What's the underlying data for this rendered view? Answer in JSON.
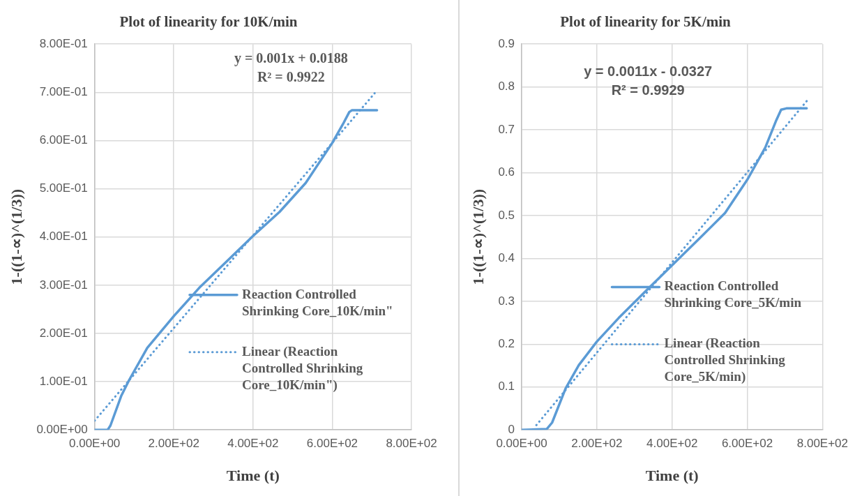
{
  "chart_data": [
    {
      "type": "line",
      "title": "Plot of linearity for 10K/min",
      "xlabel": "Time (t)",
      "ylabel": "1-((1-∝)^(1/3))",
      "xlim": [
        0,
        800
      ],
      "ylim": [
        0,
        0.8
      ],
      "xticks": [
        {
          "value": 0,
          "label": "0.00E+00"
        },
        {
          "value": 200,
          "label": "2.00E+02"
        },
        {
          "value": 400,
          "label": "4.00E+02"
        },
        {
          "value": 600,
          "label": "6.00E+02"
        },
        {
          "value": 800,
          "label": "8.00E+02"
        }
      ],
      "yticks": [
        {
          "value": 0,
          "label": "0.00E+00"
        },
        {
          "value": 0.1,
          "label": "1.00E-01"
        },
        {
          "value": 0.2,
          "label": "2.00E-01"
        },
        {
          "value": 0.3,
          "label": "3.00E-01"
        },
        {
          "value": 0.4,
          "label": "4.00E-01"
        },
        {
          "value": 0.5,
          "label": "5.00E-01"
        },
        {
          "value": 0.6,
          "label": "6.00E-01"
        },
        {
          "value": 0.7,
          "label": "7.00E-01"
        },
        {
          "value": 0.8,
          "label": "8.00E-01"
        }
      ],
      "grid": true,
      "legend": "bottom right",
      "marker": "none",
      "annotations": [
        "y = 0.001x + 0.0188",
        "R² = 0.9922"
      ],
      "series": [
        {
          "name": "Reaction Controlled Shrinking Core_10K/min\"",
          "color": "#5b9bd5",
          "line_style": "solid",
          "x": [
            0,
            33,
            40,
            67,
            87,
            133,
            200,
            267,
            333,
            400,
            467,
            533,
            600,
            627,
            643,
            650,
            713
          ],
          "values": [
            0,
            0,
            0.009,
            0.07,
            0.103,
            0.17,
            0.236,
            0.297,
            0.349,
            0.402,
            0.452,
            0.512,
            0.595,
            0.634,
            0.659,
            0.663,
            0.663
          ]
        },
        {
          "name": "Linear (Reaction Controlled Shrinking Core_10K/min\")",
          "color": "#5b9bd5",
          "line_style": "dotted",
          "x": [
            0,
            707
          ],
          "values": [
            0.019,
            0.698
          ]
        }
      ]
    },
    {
      "type": "line",
      "title": "Plot of linearity for 5K/min",
      "xlabel": "Time (t)",
      "ylabel": "1-((1-∝)^(1/3))",
      "xlim": [
        0,
        800
      ],
      "ylim": [
        0,
        0.9
      ],
      "xticks": [
        {
          "value": 0,
          "label": "0.00E+00"
        },
        {
          "value": 200,
          "label": "2.00E+02"
        },
        {
          "value": 400,
          "label": "4.00E+02"
        },
        {
          "value": 600,
          "label": "6.00E+02"
        },
        {
          "value": 800,
          "label": "8.00E+02"
        }
      ],
      "yticks": [
        0,
        0.1,
        0.2,
        0.3,
        0.4,
        0.5,
        0.6,
        0.7,
        0.8,
        0.9
      ],
      "grid": true,
      "legend": "bottom right",
      "marker": "none",
      "annotations": [
        "y = 0.0011x - 0.0327",
        "R² = 0.9929"
      ],
      "series": [
        {
          "name": "Reaction Controlled Shrinking Core_5K/min",
          "color": "#5b9bd5",
          "line_style": "solid",
          "x": [
            0,
            67,
            81,
            117,
            152,
            200,
            258,
            329,
            400,
            471,
            541,
            601,
            648,
            676,
            690,
            704,
            758
          ],
          "values": [
            0,
            0.002,
            0.017,
            0.097,
            0.151,
            0.206,
            0.261,
            0.323,
            0.384,
            0.445,
            0.506,
            0.585,
            0.659,
            0.72,
            0.747,
            0.75,
            0.75
          ]
        },
        {
          "name": "Linear (Reaction Controlled Shrinking Core_5K/min)",
          "color": "#5b9bd5",
          "line_style": "dotted",
          "x": [
            39,
            758
          ],
          "values": [
            0.011,
            0.767
          ]
        }
      ]
    }
  ]
}
